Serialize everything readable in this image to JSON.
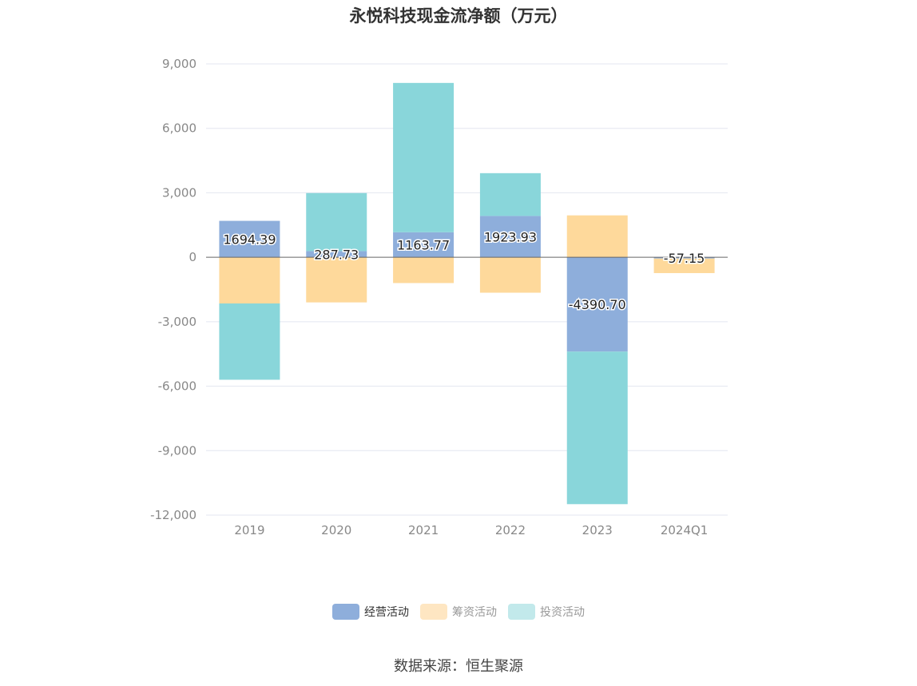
{
  "title": "永悦科技现金流净额（万元）",
  "source": "数据来源：恒生聚源",
  "chart_data": {
    "type": "bar",
    "stacked": true,
    "categories": [
      "2019",
      "2020",
      "2021",
      "2022",
      "2023",
      "2024Q1"
    ],
    "ylim": [
      -12000,
      9000
    ],
    "yticks": [
      9000,
      6000,
      3000,
      0,
      -3000,
      -6000,
      -9000,
      -12000
    ],
    "ytick_labels": [
      "9,000",
      "6,000",
      "3,000",
      "0",
      "-3,000",
      "-6,000",
      "-9,000",
      "-12,000"
    ],
    "grid": true,
    "legend_position": "bottom",
    "series": [
      {
        "name": "经营活动",
        "color": "#8eaedb",
        "values": [
          1694.39,
          287.73,
          1163.77,
          1923.93,
          -4390.7,
          -57.15
        ],
        "labels": [
          "1694.39",
          "287.73",
          "1163.77",
          "1923.93",
          "-4390.70",
          "-57.15"
        ]
      },
      {
        "name": "筹资活动",
        "color": "#fed99b",
        "values": [
          -2150,
          -2100,
          -1200,
          -1650,
          1950,
          -680
        ]
      },
      {
        "name": "投资活动",
        "color": "#89d6da",
        "values": [
          -3550,
          2700,
          6950,
          1990,
          -7100,
          0
        ]
      }
    ]
  }
}
